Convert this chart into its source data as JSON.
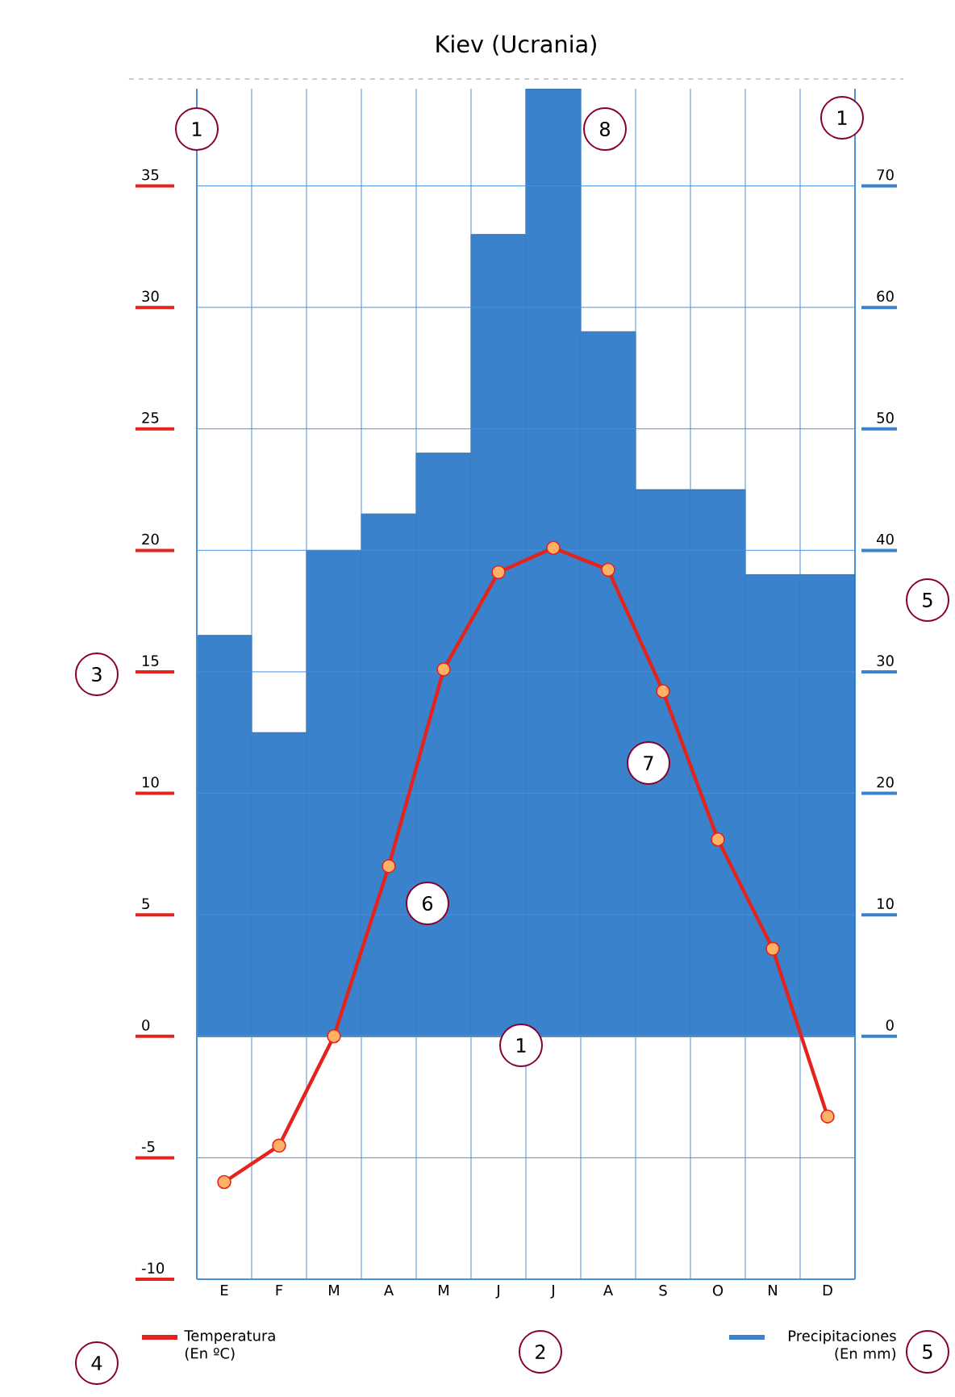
{
  "chart_data": {
    "type": "bar",
    "title": "Kiev (Ucrania)",
    "categories": [
      "E",
      "F",
      "M",
      "A",
      "M",
      "J",
      "J",
      "A",
      "S",
      "O",
      "N",
      "D"
    ],
    "series": [
      {
        "name": "Temperatura (En ºC)",
        "type": "line",
        "color": "#e3231c",
        "marker": "circle",
        "values": [
          -6.0,
          -4.5,
          0,
          7.0,
          15.1,
          19.1,
          20.1,
          19.2,
          14.2,
          8.1,
          3.6,
          -3.3
        ]
      },
      {
        "name": "Precipitaciones (En mm)",
        "axis": "y2",
        "color": "#3a82cc",
        "values": [
          33,
          25,
          40,
          43,
          48,
          66,
          78,
          58,
          45,
          45,
          38,
          38
        ]
      }
    ],
    "ylim": [
      -10,
      39
    ],
    "yticks": [
      -10,
      -5,
      0,
      5,
      10,
      15,
      20,
      25,
      30,
      35
    ],
    "y2lim": [
      -20,
      78
    ],
    "y2ticks": [
      0,
      10,
      20,
      30,
      40,
      50,
      60,
      70
    ],
    "grid": true,
    "legend": "bottom",
    "ref_lines": [
      {
        "axis": "y",
        "value": 0
      }
    ],
    "annotations": [
      "1",
      "8",
      "1",
      "3",
      "6",
      "7",
      "1",
      "2",
      "4",
      "5",
      "5"
    ]
  }
}
